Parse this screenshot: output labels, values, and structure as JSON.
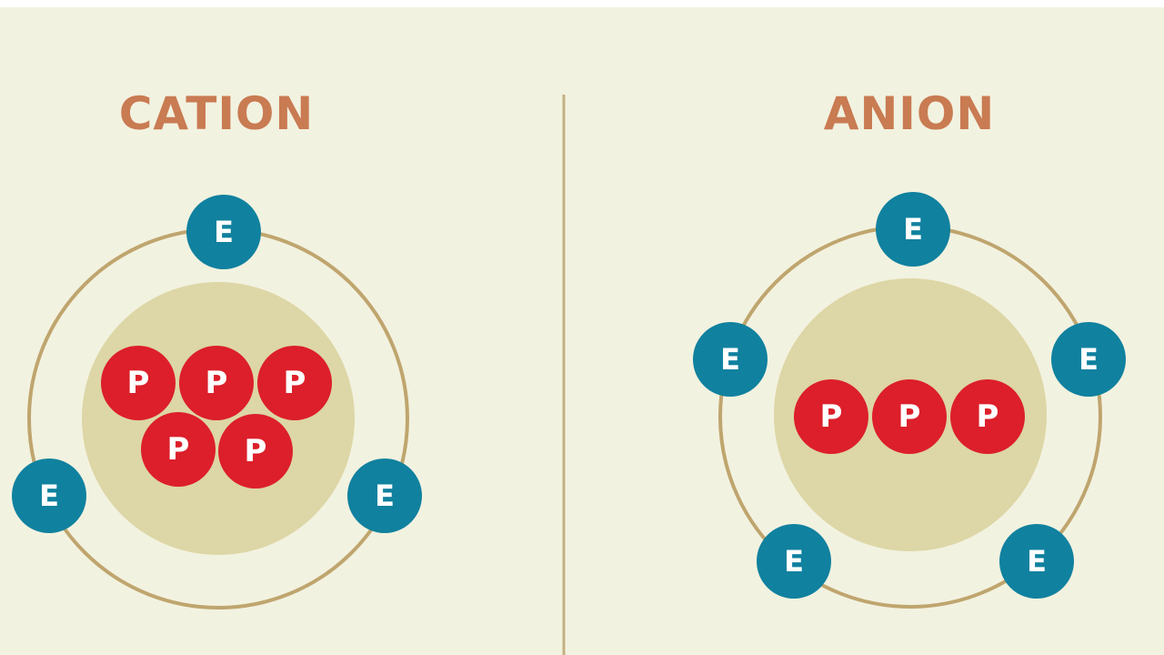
{
  "colors": {
    "background": "#f2f2e0",
    "title": "#c97b52",
    "divider": "#c4b083",
    "orbit": "#bfa56e",
    "nucleus": "#ddd6a6",
    "proton": "#dc1f2a",
    "electron": "#10819f"
  },
  "cation": {
    "title": "CATION",
    "proton_label": "P",
    "electron_label": "E",
    "proton_count": 5,
    "electron_count": 3
  },
  "anion": {
    "title": "ANION",
    "proton_label": "P",
    "electron_label": "E",
    "proton_count": 3,
    "electron_count": 5
  }
}
